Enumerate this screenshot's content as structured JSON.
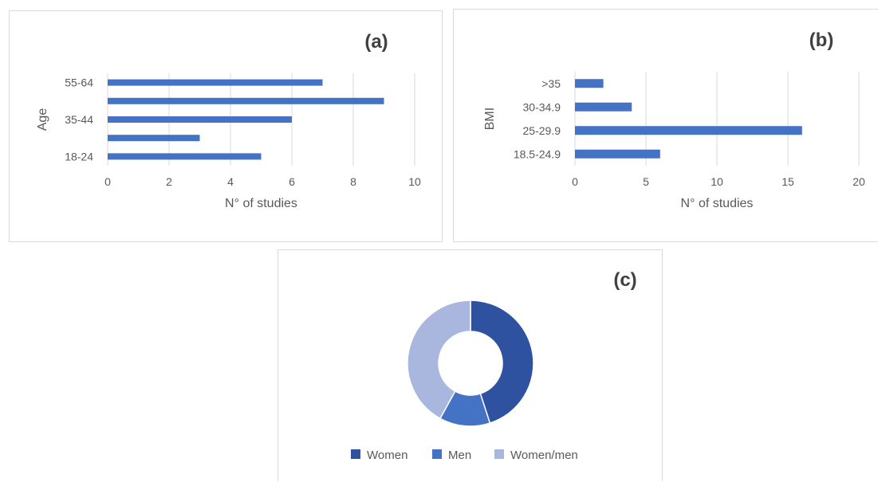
{
  "chart_data": [
    {
      "type": "bar",
      "orientation": "horizontal",
      "panel_label": "(a)",
      "ylabel": "Age",
      "xlabel": "N° of studies",
      "categories": [
        "18-24",
        "",
        "35-44",
        "",
        "55-64"
      ],
      "values": [
        5,
        3,
        6,
        9,
        7
      ],
      "xlim": [
        0,
        10
      ],
      "xticks": [
        "0",
        "2",
        "4",
        "6",
        "8",
        "10"
      ],
      "grid": true,
      "color": "#4472c4"
    },
    {
      "type": "bar",
      "orientation": "horizontal",
      "panel_label": "(b)",
      "ylabel": "BMI",
      "xlabel": "N° of studies",
      "categories": [
        "18.5-24.9",
        "25-29.9",
        "30-34.9",
        ">35"
      ],
      "values": [
        6,
        16,
        4,
        2
      ],
      "xlim": [
        0,
        20
      ],
      "xticks": [
        "0",
        "5",
        "10",
        "15",
        "20"
      ],
      "grid": true,
      "color": "#4472c4"
    },
    {
      "type": "pie",
      "style": "donut",
      "panel_label": "(c)",
      "labels": [
        "Women",
        "Men",
        "Women/men"
      ],
      "values": [
        45,
        13,
        42
      ],
      "colors": [
        "#2f52a0",
        "#4472c4",
        "#a9b6de"
      ],
      "legend": "bottom"
    }
  ]
}
